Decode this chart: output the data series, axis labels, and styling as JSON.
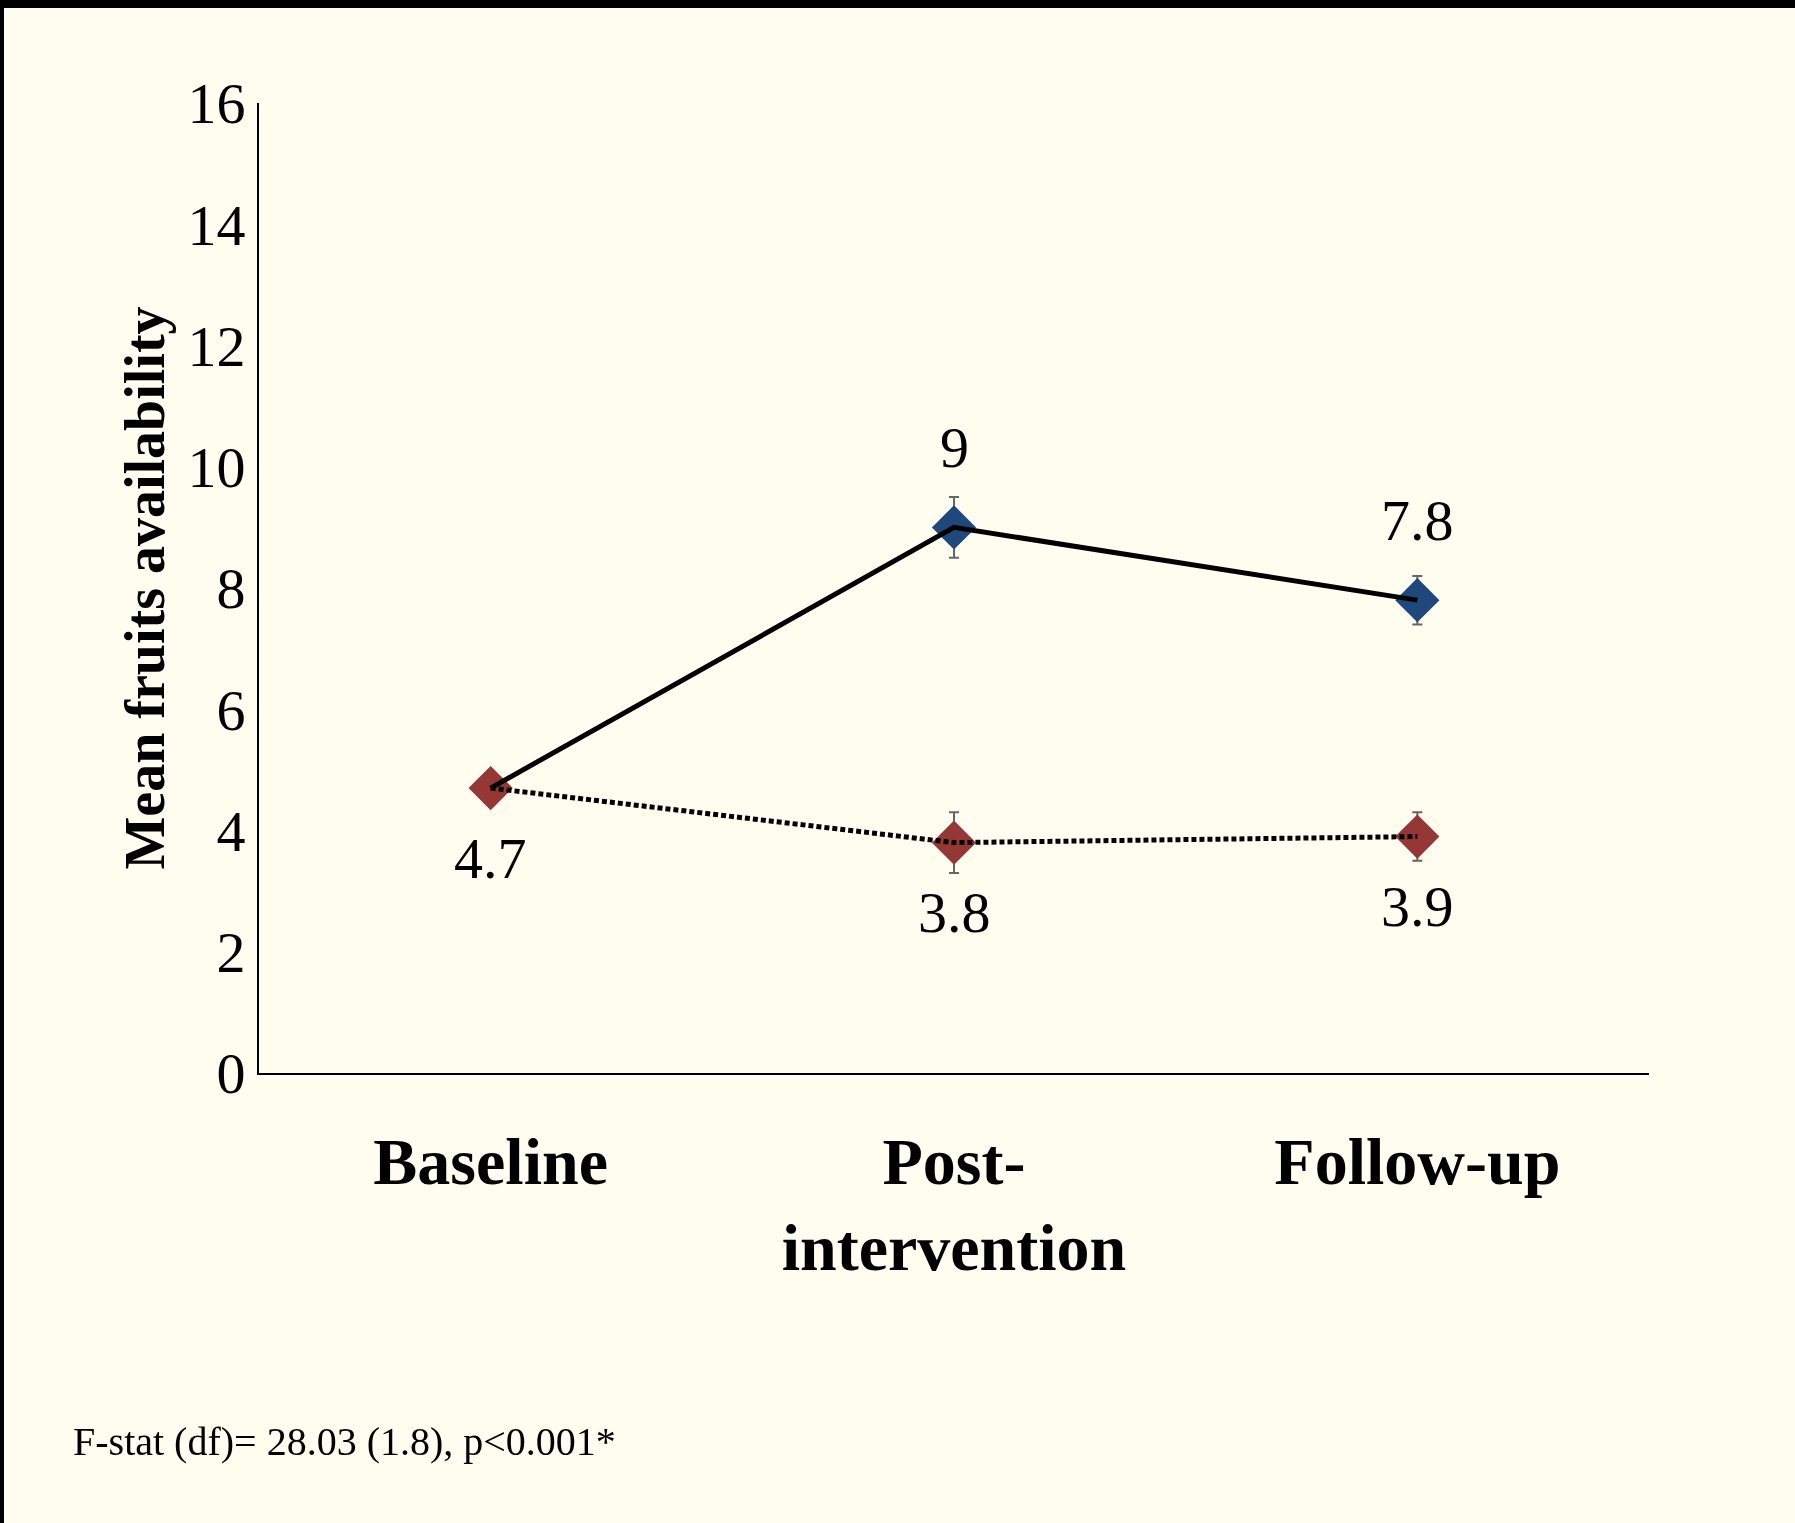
{
  "chart_data": {
    "type": "line",
    "ylabel": "Mean fruits availability",
    "categories": [
      "Baseline",
      "Post-\nintervention",
      "Follow-up"
    ],
    "series": [
      {
        "color": "#000000",
        "line_style": "solid",
        "marker": "none",
        "values": [
          4.7,
          9,
          7.8
        ]
      },
      {
        "color": "#000000",
        "line_style": "dotted",
        "marker": "none",
        "values": [
          4.7,
          3.8,
          3.9
        ]
      },
      {
        "type": "scatter",
        "marker": "diamond",
        "color": "#1f497d",
        "values": [
          null,
          9,
          7.8
        ],
        "errors": [
          null,
          0.5,
          0.4
        ],
        "value_labels": [
          null,
          "9",
          "7.8"
        ]
      },
      {
        "type": "scatter",
        "marker": "diamond",
        "color": "#953735",
        "values": [
          4.7,
          3.8,
          3.9
        ],
        "errors": [
          null,
          0.5,
          0.4
        ],
        "value_labels": [
          "4.7",
          "3.8",
          "3.9"
        ]
      }
    ],
    "ylim": [
      0,
      16
    ],
    "yticks": [
      0,
      2,
      4,
      6,
      8,
      10,
      12,
      14,
      16
    ],
    "grid": false,
    "annotations": [
      "F-stat (df)= 28.03 (1.8), p<0.001*"
    ]
  }
}
